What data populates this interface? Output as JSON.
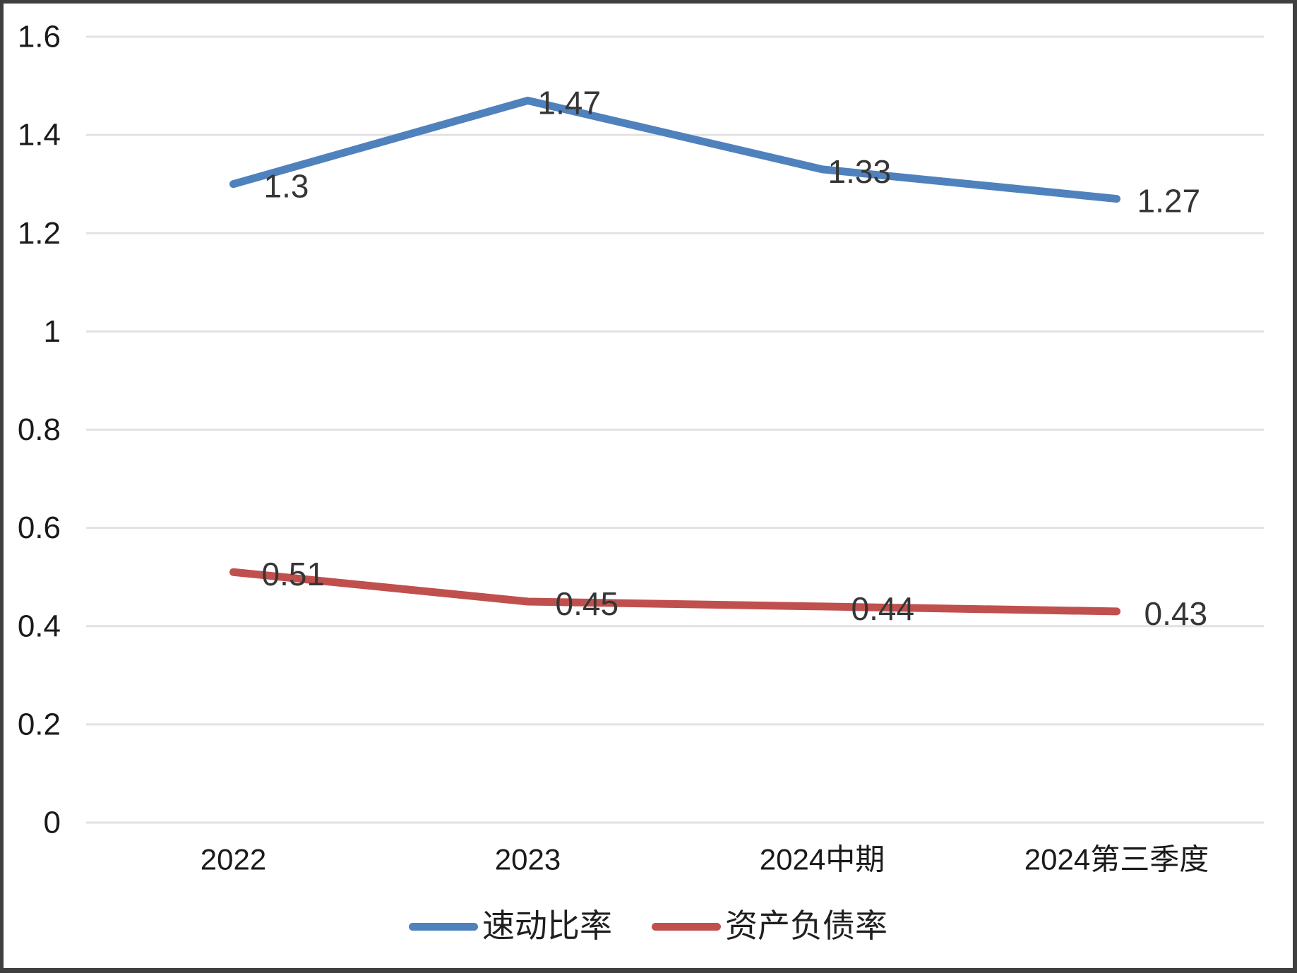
{
  "chart_data": {
    "type": "line",
    "title": "",
    "xlabel": "",
    "ylabel": "",
    "categories": [
      "2022",
      "2023",
      "2024中期",
      "2024第三季度"
    ],
    "series": [
      {
        "name": "速动比率",
        "color": "#4F81BD",
        "values": [
          1.3,
          1.47,
          1.33,
          1.27
        ],
        "data_labels": [
          "1.3",
          "1.47",
          "1.33",
          "1.27"
        ]
      },
      {
        "name": "资产负债率",
        "color": "#C0504D",
        "values": [
          0.51,
          0.45,
          0.44,
          0.43
        ],
        "data_labels": [
          "0.51",
          "0.45",
          "0.44",
          "0.43"
        ]
      }
    ],
    "y_axis": {
      "min": 0,
      "max": 1.6,
      "step": 0.2,
      "tick_labels": [
        "0",
        "0.2",
        "0.4",
        "0.6",
        "0.8",
        "1",
        "1.2",
        "1.4",
        "1.6"
      ]
    },
    "grid": true,
    "legend_position": "bottom",
    "colors": {
      "gridline": "#E2E2E2",
      "axis_text": "#1a1a1a",
      "data_label_text": "#363636",
      "frame_border": "#3f3f3f",
      "background": "#ffffff"
    }
  }
}
